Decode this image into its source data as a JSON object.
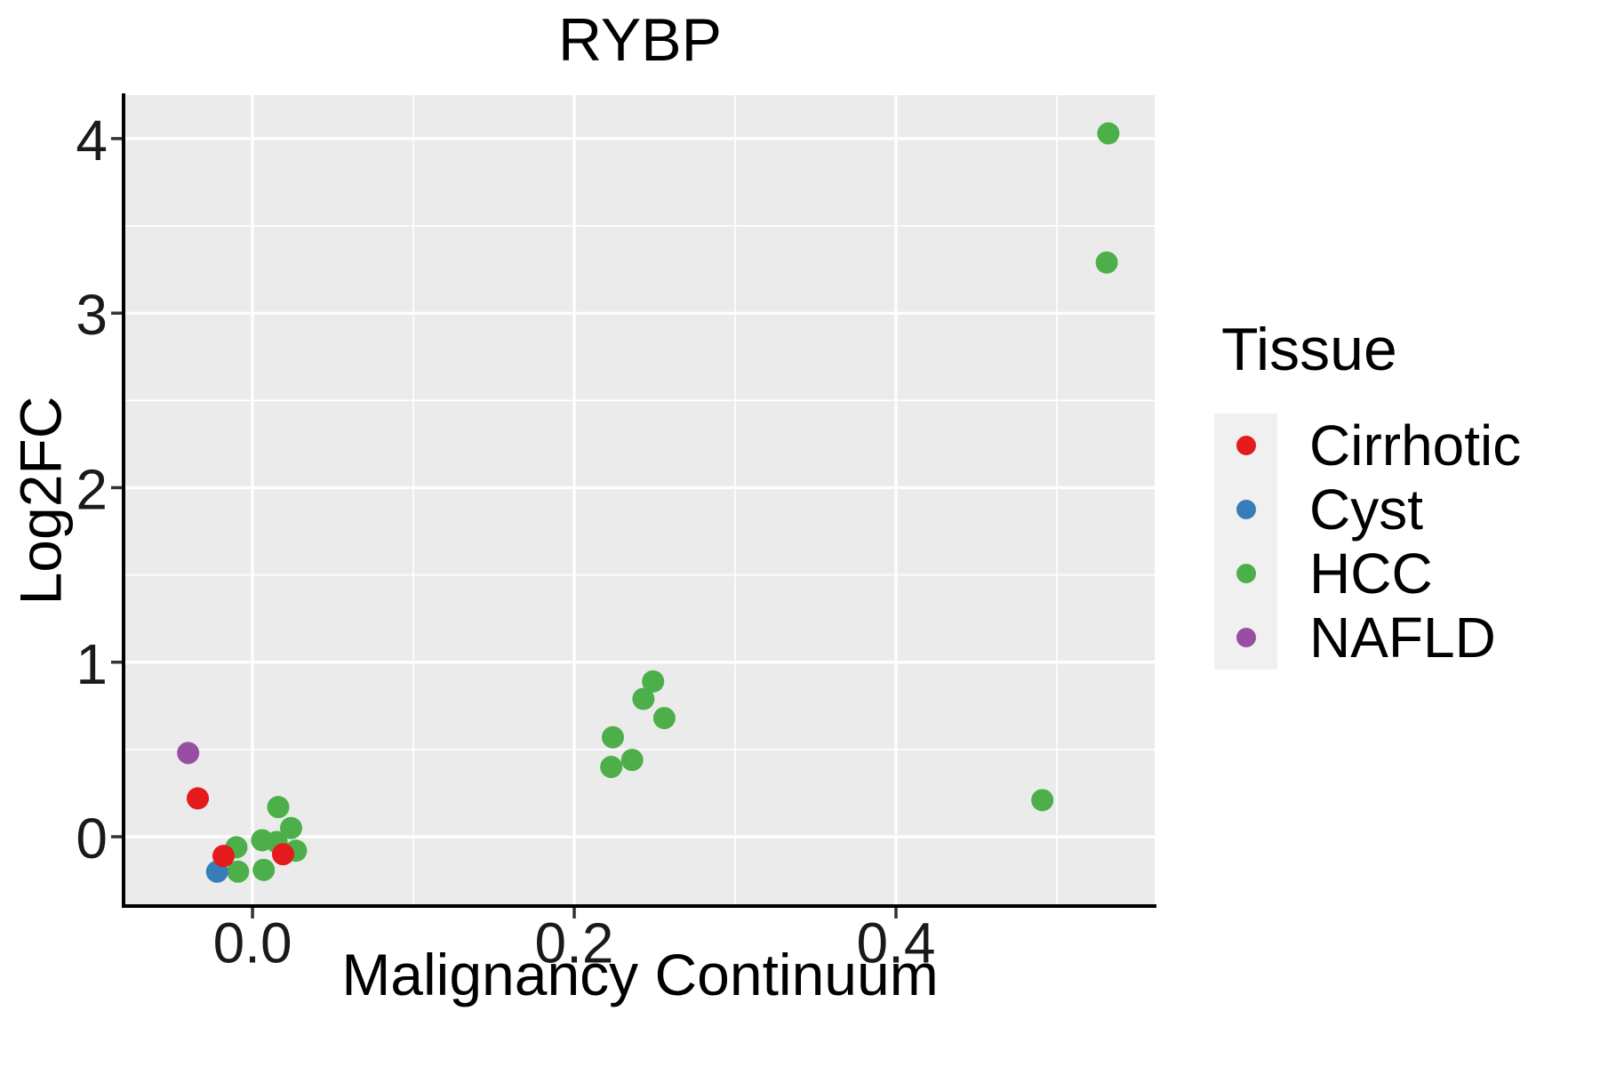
{
  "title": "RYBP",
  "chart_data": {
    "type": "scatter",
    "title": "RYBP",
    "xlabel": "Malignancy Continuum",
    "ylabel": "Log2FC",
    "xlim": [
      -0.0796,
      0.5608
    ],
    "ylim": [
      -0.392,
      4.249
    ],
    "grid": true,
    "panel_background": "#EBEBEB",
    "gridline_color": "#FFFFFF",
    "axis_line_color": "#000000",
    "tick_mark_color": "#333333",
    "x_ticks": [
      {
        "value": 0.0,
        "label": "0.0"
      },
      {
        "value": 0.2,
        "label": "0.2"
      },
      {
        "value": 0.4,
        "label": "0.4"
      }
    ],
    "y_ticks": [
      {
        "value": 0,
        "label": "0"
      },
      {
        "value": 1,
        "label": "1"
      },
      {
        "value": 2,
        "label": "2"
      },
      {
        "value": 3,
        "label": "3"
      },
      {
        "value": 4,
        "label": "4"
      }
    ],
    "x_minor_ticks": [
      0.1,
      0.3,
      0.5
    ],
    "y_minor_ticks": [
      0.5,
      1.5,
      2.5,
      3.5
    ],
    "series": [
      {
        "name": "HCC",
        "color": "#4DAF4A",
        "points": [
          [
            0.532,
            4.03
          ],
          [
            0.531,
            3.29
          ],
          [
            0.491,
            0.21
          ],
          [
            0.249,
            0.89
          ],
          [
            0.243,
            0.79
          ],
          [
            0.256,
            0.68
          ],
          [
            0.224,
            0.57
          ],
          [
            0.236,
            0.44
          ],
          [
            0.223,
            0.4
          ],
          [
            0.016,
            0.17
          ],
          [
            0.015,
            -0.03
          ],
          [
            0.006,
            -0.02
          ],
          [
            -0.01,
            -0.06
          ],
          [
            0.027,
            -0.08
          ],
          [
            -0.009,
            -0.2
          ],
          [
            0.007,
            -0.19
          ],
          [
            0.024,
            0.05
          ]
        ]
      },
      {
        "name": "Cyst",
        "color": "#377EB8",
        "points": [
          [
            -0.022,
            -0.2
          ]
        ]
      },
      {
        "name": "Cirrhotic",
        "color": "#E41A1C",
        "points": [
          [
            -0.034,
            0.22
          ],
          [
            -0.018,
            -0.11
          ],
          [
            0.019,
            -0.1
          ]
        ]
      },
      {
        "name": "NAFLD",
        "color": "#984EA3",
        "points": [
          [
            -0.04,
            0.48
          ]
        ]
      }
    ],
    "legend": {
      "title": "Tissue",
      "position": "right",
      "entries": [
        {
          "label": "Cirrhotic",
          "color": "#E41A1C"
        },
        {
          "label": "Cyst",
          "color": "#377EB8"
        },
        {
          "label": "HCC",
          "color": "#4DAF4A"
        },
        {
          "label": "NAFLD",
          "color": "#984EA3"
        }
      ]
    }
  }
}
